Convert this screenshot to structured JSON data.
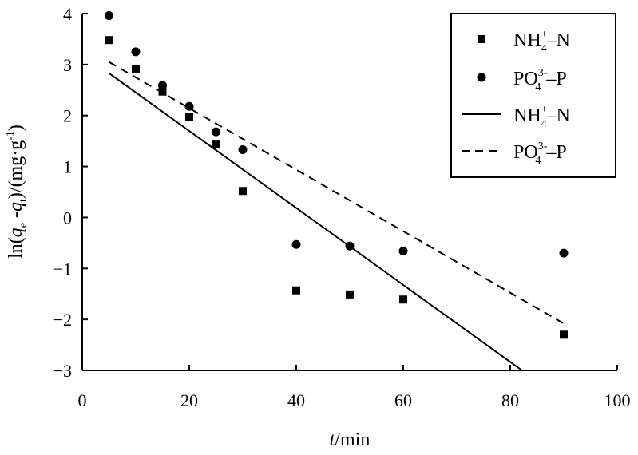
{
  "chart_data": {
    "type": "scatter",
    "xlabel": {
      "italic": "t",
      "rest": "/min"
    },
    "ylabel": {
      "text": "ln(",
      "q1": "q",
      "s1": "e",
      "mid": " -",
      "q2": "q",
      "s2": "t",
      "tail": ")/(mg·g",
      "sup": "-1",
      "end": ")"
    },
    "xlim": [
      0,
      100
    ],
    "ylim": [
      -3,
      4
    ],
    "xticks": [
      "0",
      "20",
      "40",
      "60",
      "80",
      "100"
    ],
    "yticks": [
      "4",
      "3",
      "2",
      "1",
      "0",
      "−1",
      "−2",
      "−3"
    ],
    "grid": false,
    "legend_position": "top-right",
    "legend": [
      {
        "marker": "square",
        "pre": "NH",
        "sub": "4",
        "sup": "+",
        "post": "–N"
      },
      {
        "marker": "circle",
        "pre": "PO",
        "sub": "4",
        "sup": "3-",
        "post": "–P"
      },
      {
        "marker": "solid-line",
        "pre": "NH",
        "sub": "4",
        "sup": "+",
        "post": "–N"
      },
      {
        "marker": "dashed-line",
        "pre": "PO",
        "sub": "4",
        "sup": "3-",
        "post": "–P"
      }
    ],
    "series": [
      {
        "marker": "square",
        "points": [
          [
            5,
            3.48
          ],
          [
            10,
            2.92
          ],
          [
            15,
            2.47
          ],
          [
            20,
            1.97
          ],
          [
            25,
            1.43
          ],
          [
            30,
            0.52
          ],
          [
            40,
            -1.43
          ],
          [
            50,
            -1.51
          ],
          [
            60,
            -1.61
          ],
          [
            90,
            -2.3
          ]
        ]
      },
      {
        "marker": "circle",
        "points": [
          [
            5,
            3.96
          ],
          [
            10,
            3.25
          ],
          [
            15,
            2.59
          ],
          [
            20,
            2.18
          ],
          [
            25,
            1.68
          ],
          [
            30,
            1.33
          ],
          [
            40,
            -0.53
          ],
          [
            50,
            -0.56
          ],
          [
            60,
            -0.66
          ],
          [
            90,
            -0.7
          ]
        ]
      }
    ],
    "fits": [
      {
        "style": "solid",
        "x": [
          5,
          82.2
        ],
        "y": [
          2.83,
          -3.0
        ]
      },
      {
        "style": "dashed",
        "x": [
          5,
          90
        ],
        "y": [
          3.05,
          -2.08
        ]
      }
    ]
  }
}
